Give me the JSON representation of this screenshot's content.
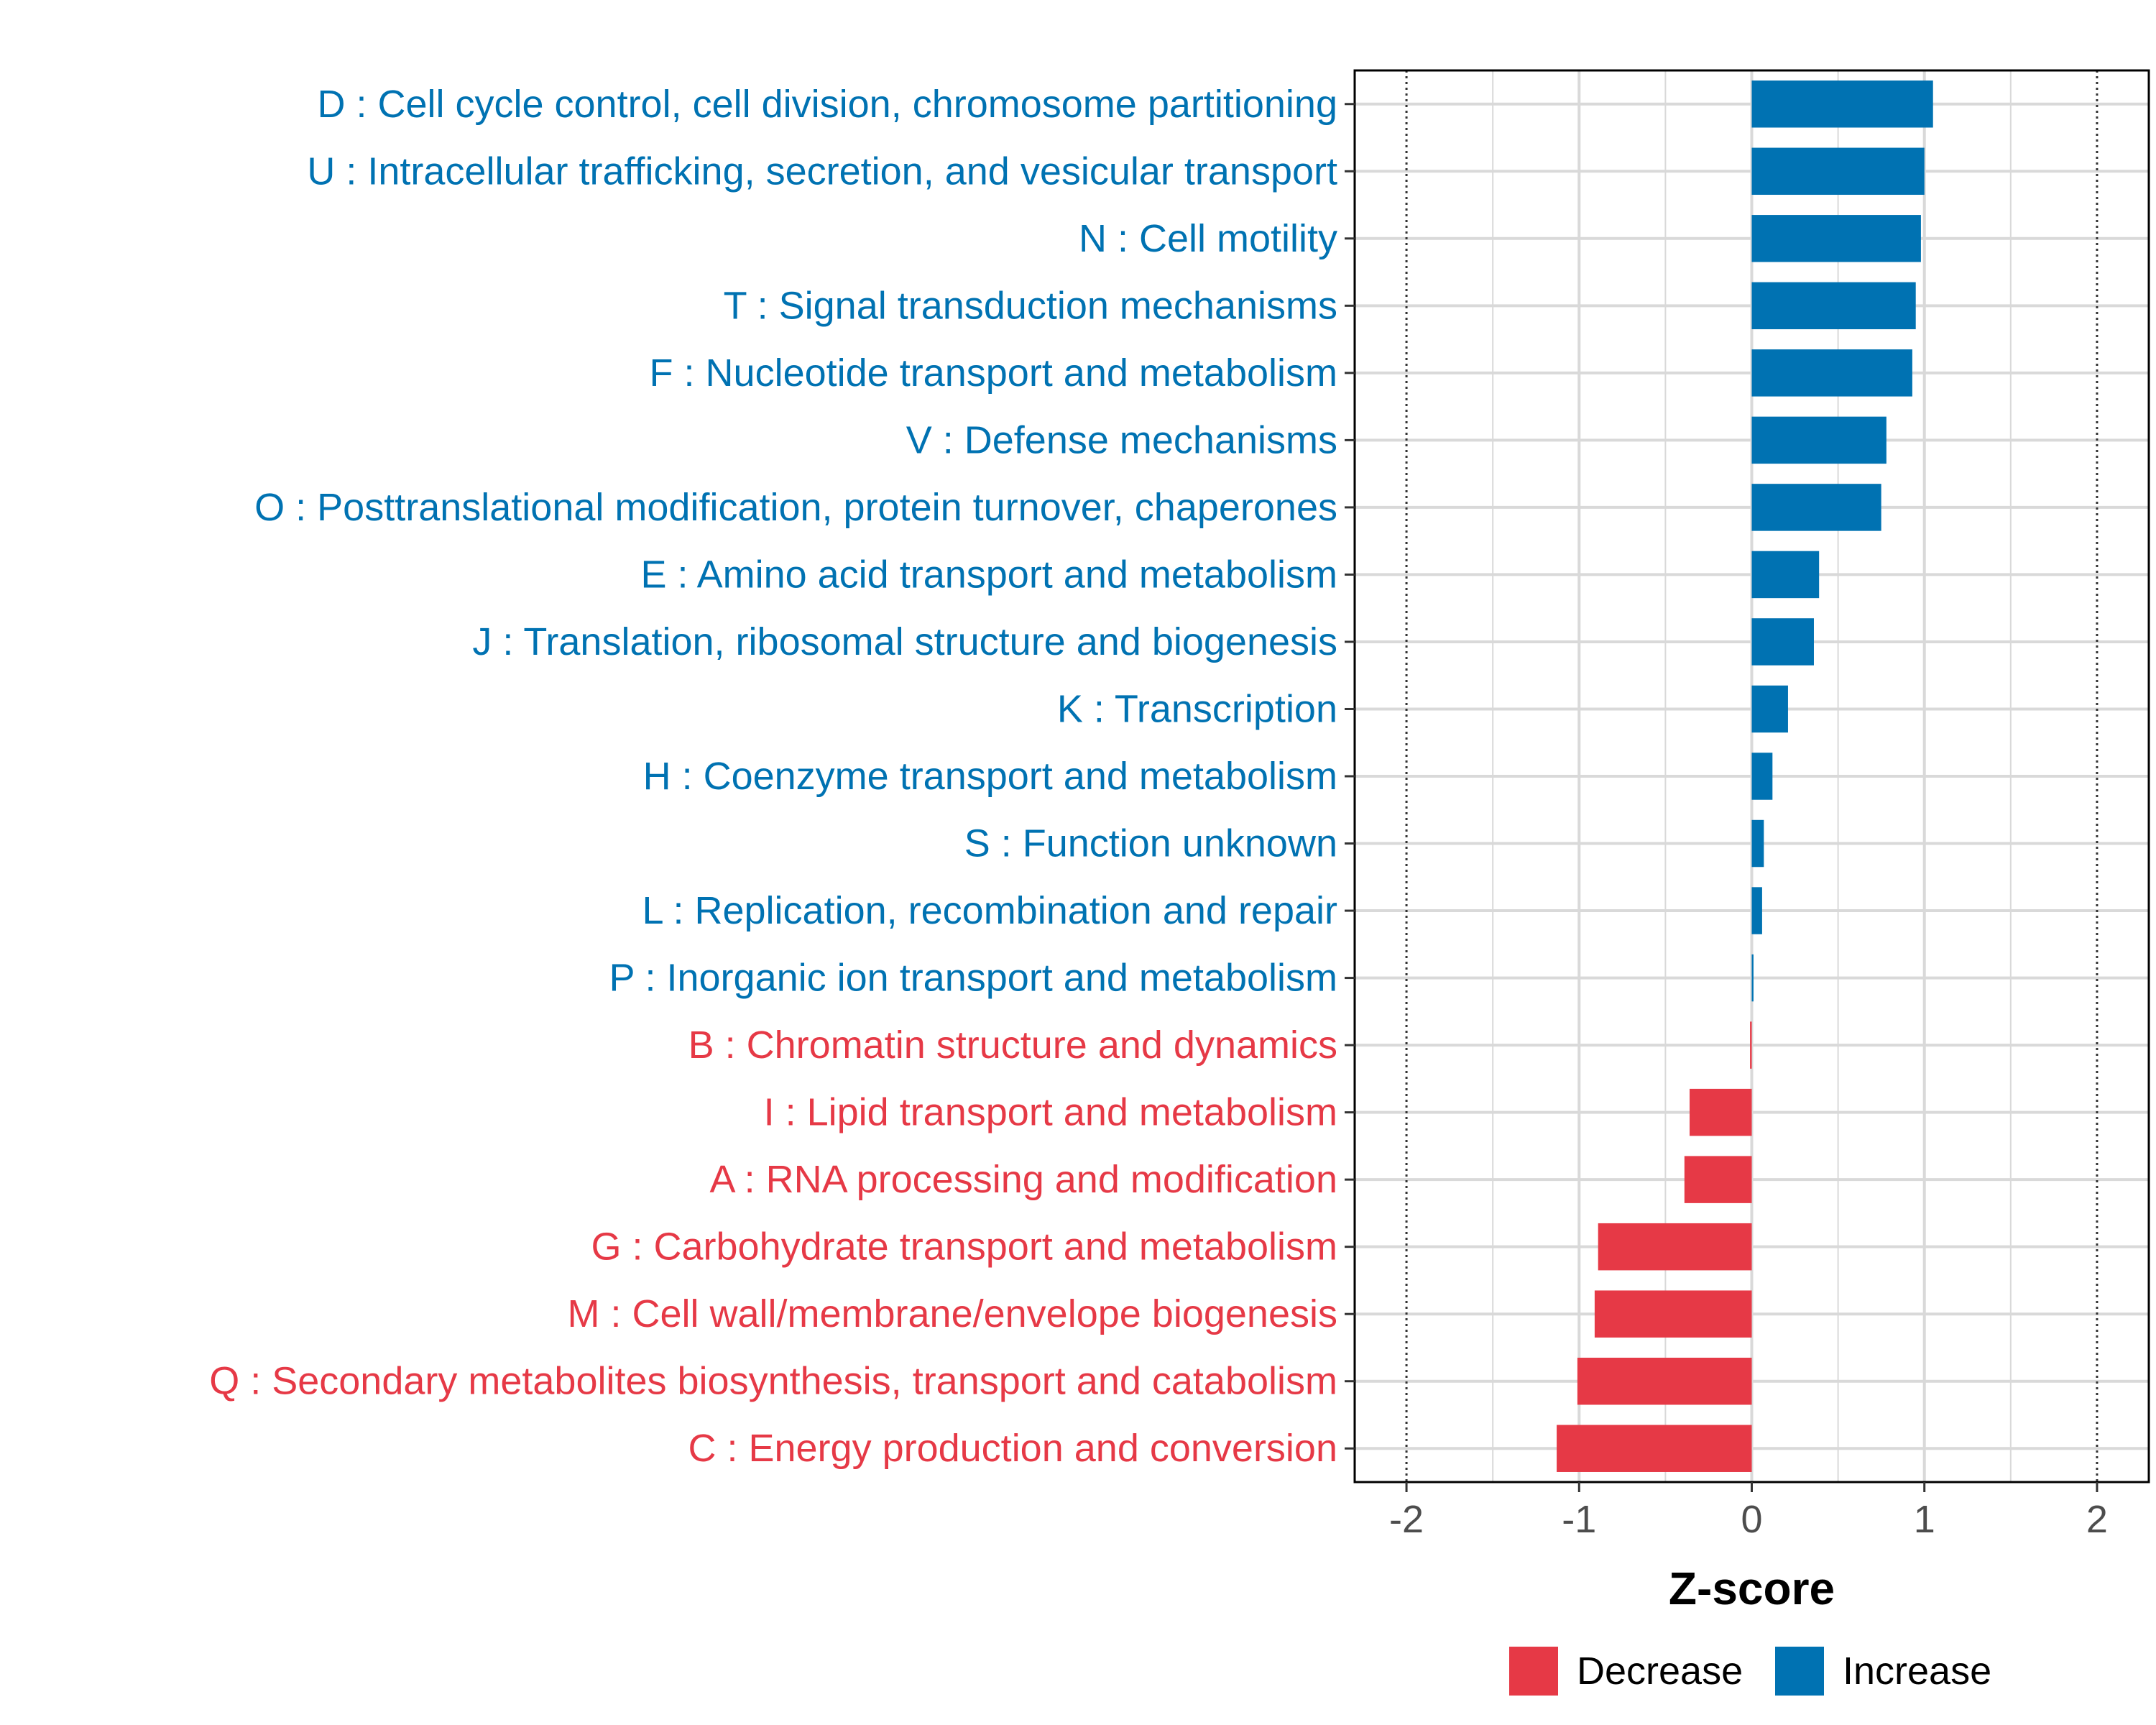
{
  "chart_data": {
    "type": "bar",
    "orientation": "horizontal",
    "title": "",
    "xlabel": "Z-score",
    "ylabel": "",
    "xlim": [
      -2.3,
      2.3
    ],
    "xticks": [
      -2,
      -1,
      0,
      1,
      2
    ],
    "xtick_labels": [
      "-2",
      "-1",
      "0",
      "1",
      "2"
    ],
    "reference_lines": [
      -2,
      2
    ],
    "grid": true,
    "colors": {
      "Decrease": "#e63946",
      "Increase": "#0072b2"
    },
    "categories": [
      "D : Cell cycle control, cell division, chromosome partitioning",
      "U : Intracellular trafficking, secretion, and vesicular transport",
      "N : Cell motility",
      "T : Signal transduction mechanisms",
      "F : Nucleotide transport and metabolism",
      "V : Defense mechanisms",
      "O : Posttranslational modification, protein turnover, chaperones",
      "E : Amino acid transport and metabolism",
      "J : Translation, ribosomal structure and biogenesis",
      "K : Transcription",
      "H : Coenzyme transport and metabolism",
      "S : Function unknown",
      "L : Replication, recombination and repair",
      "P : Inorganic ion transport and metabolism",
      "B : Chromatin structure and dynamics",
      "I : Lipid transport and metabolism",
      "A : RNA processing and modification",
      "G : Carbohydrate transport and metabolism",
      "M : Cell wall/membrane/envelope biogenesis",
      "Q : Secondary metabolites biosynthesis, transport and catabolism",
      "C : Energy production and conversion"
    ],
    "values": [
      1.05,
      1.0,
      0.98,
      0.95,
      0.93,
      0.78,
      0.75,
      0.39,
      0.36,
      0.21,
      0.12,
      0.07,
      0.06,
      0.01,
      -0.01,
      -0.36,
      -0.39,
      -0.89,
      -0.91,
      -1.01,
      -1.13
    ],
    "groups": [
      "Increase",
      "Increase",
      "Increase",
      "Increase",
      "Increase",
      "Increase",
      "Increase",
      "Increase",
      "Increase",
      "Increase",
      "Increase",
      "Increase",
      "Increase",
      "Increase",
      "Decrease",
      "Decrease",
      "Decrease",
      "Decrease",
      "Decrease",
      "Decrease",
      "Decrease"
    ],
    "legend": {
      "position": "bottom",
      "entries": [
        "Decrease",
        "Increase"
      ]
    }
  }
}
